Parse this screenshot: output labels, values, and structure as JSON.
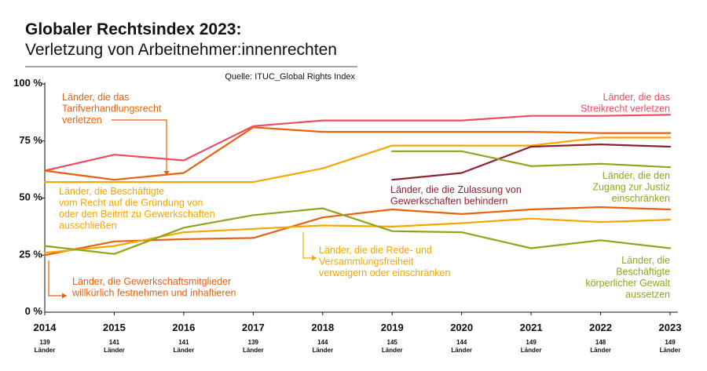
{
  "chart_data": {
    "type": "line",
    "title": "Globaler Rechtsindex 2023:",
    "subtitle": "Verletzung von Arbeitnehmer:innenrechten",
    "source": "Quelle: ITUC_Global Rights Index",
    "x": [
      "2014",
      "2015",
      "2016",
      "2017",
      "2018",
      "2019",
      "2020",
      "2021",
      "2022",
      "2023"
    ],
    "country_counts": [
      "139",
      "141",
      "141",
      "139",
      "144",
      "145",
      "144",
      "149",
      "148",
      "149"
    ],
    "country_unit": "Länder",
    "y_ticks": [
      "0 %",
      "25 %",
      "50 %",
      "75 %",
      "100 %"
    ],
    "ylim": [
      0,
      100
    ],
    "series": [
      {
        "name": "Länder, die das Streikrecht verletzen",
        "color": "#ef4a62",
        "values": [
          62,
          69,
          66.5,
          81.5,
          84,
          84,
          84,
          86,
          86,
          86.5
        ]
      },
      {
        "name": "Länder, die das Tarifverhandlungsrecht verletzen",
        "color": "#e8610f",
        "values": [
          62,
          58,
          61,
          81,
          79,
          79,
          79,
          79,
          78.5,
          78.5
        ]
      },
      {
        "name": "Länder, die Beschäftigte vom Recht auf die Gründung von oder den Beitritt zu Gewerkschaften ausschließen",
        "color": "#f7a600",
        "values": [
          57,
          57,
          57,
          57,
          63,
          73,
          73,
          73,
          76.5,
          76.5
        ]
      },
      {
        "name": "Länder, die die Zulassung von Gewerkschaften behindern",
        "color": "#8c2332",
        "values": [
          null,
          null,
          null,
          null,
          null,
          58,
          61,
          72.5,
          73.5,
          72.5
        ]
      },
      {
        "name": "Länder, die den Zugang zur Justiz einschränken",
        "color": "#93a31c",
        "values": [
          null,
          null,
          null,
          null,
          null,
          70.5,
          70.5,
          64,
          65,
          63.5
        ]
      },
      {
        "name": "Länder, die Gewerkschaftsmitglieder willkürlich festnehmen und inhaftieren",
        "color": "#e8610f",
        "values": [
          25,
          31,
          32,
          32.5,
          41.5,
          45,
          43,
          45,
          46,
          45
        ]
      },
      {
        "name": "Länder, die Rede- und Versammlungsfreiheit verweigern oder einschränken",
        "color": "#f7a600",
        "values": [
          26,
          29,
          35,
          36.5,
          38,
          37.5,
          39,
          41,
          39.5,
          40.5
        ]
      },
      {
        "name": "Länder, die Beschäftigte körperlicher Gewalt aussetzen",
        "color": "#93a31c",
        "values": [
          29,
          25.5,
          37,
          42.5,
          45.5,
          35.5,
          35,
          28,
          31.5,
          28
        ]
      }
    ],
    "annotations": [
      {
        "lines": [
          "Länder, die das",
          "Tarifverhandlungsrecht",
          "verletzen"
        ],
        "color": "#e8610f"
      },
      {
        "lines": [
          "Länder, die das",
          "Streikrecht verletzen"
        ],
        "color": "#ef4a62"
      },
      {
        "lines": [
          "Länder, die Beschäftigte",
          "vom Recht auf die Gründung von",
          "oder den Beitritt zu Gewerkschaften",
          "ausschließen"
        ],
        "color": "#f7a600"
      },
      {
        "lines": [
          "Länder, die die Zulassung von",
          "Gewerkschaften behindern"
        ],
        "color": "#8c2332"
      },
      {
        "lines": [
          "Länder, die den",
          "Zugang zur Justiz",
          "einschränken"
        ],
        "color": "#93a31c"
      },
      {
        "lines": [
          "Länder, die die Rede- und",
          "Versammlungsfreiheit",
          "verweigern oder einschränken"
        ],
        "color": "#f7a600"
      },
      {
        "lines": [
          "Länder, die Gewerkschaftsmitglieder",
          "willkürlich festnehmen und inhaftieren"
        ],
        "color": "#e8610f"
      },
      {
        "lines": [
          "Länder, die",
          "Beschäftigte",
          "körperlicher Gewalt",
          "aussetzen"
        ],
        "color": "#93a31c"
      }
    ]
  }
}
